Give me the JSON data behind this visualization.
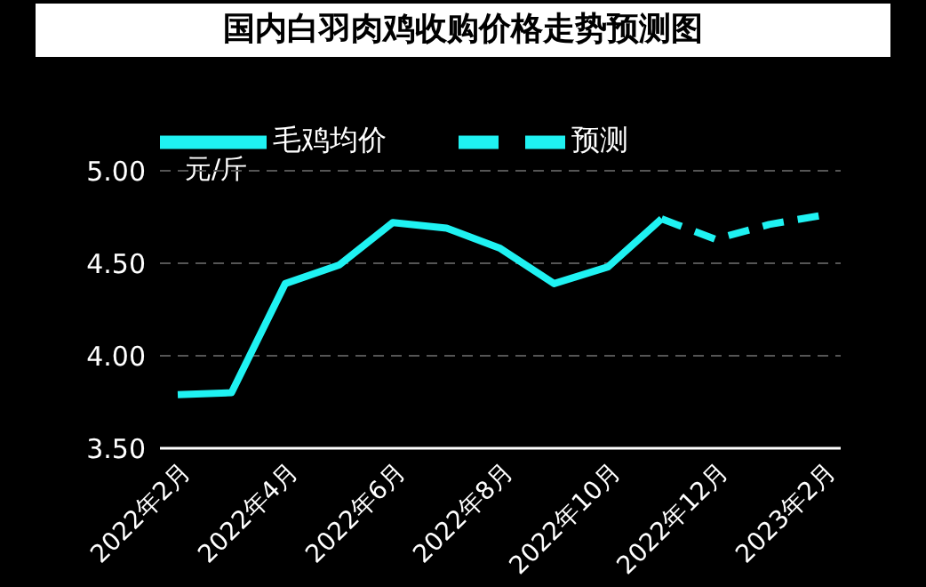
{
  "chart_data": {
    "type": "line",
    "title": "国内白羽肉鸡收购价格走势预测图",
    "ylabel": "元/斤",
    "categories": [
      "2022年2月",
      null,
      "2022年4月",
      null,
      "2022年6月",
      null,
      "2022年8月",
      null,
      "2022年10月",
      null,
      "2022年12月",
      null,
      "2023年2月"
    ],
    "series": [
      {
        "name": "毛鸡均价",
        "color": "#1ff2f2",
        "line_style": "solid",
        "values": [
          3.79,
          3.8,
          4.39,
          4.49,
          4.72,
          4.69,
          4.58,
          4.39,
          4.48,
          4.74,
          null,
          null,
          null
        ]
      },
      {
        "name": "预测",
        "color": "#1ff2f2",
        "line_style": "dashed",
        "values": [
          null,
          null,
          null,
          null,
          null,
          null,
          null,
          null,
          null,
          4.74,
          4.63,
          4.71,
          4.76
        ]
      }
    ],
    "ylim": [
      3.5,
      5
    ],
    "yticks": [
      {
        "value": 3.5,
        "label": "3.50"
      },
      {
        "value": 4,
        "label": "4.00"
      },
      {
        "value": 4.5,
        "label": "4.50"
      },
      {
        "value": 5,
        "label": "5.00"
      }
    ],
    "grid": "y",
    "legend": "top",
    "marker": "none"
  }
}
